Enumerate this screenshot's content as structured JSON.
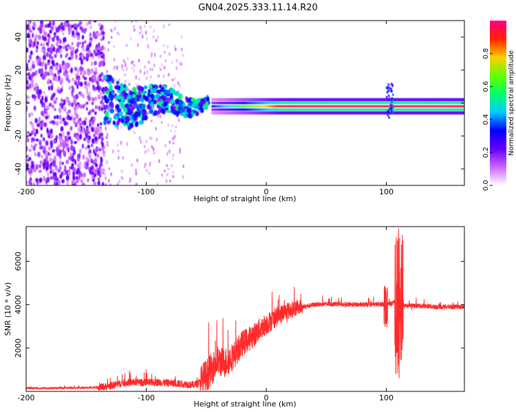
{
  "figure_title": "GN04.2025.333.11.14.R20",
  "chart_data": [
    {
      "type": "heatmap",
      "title": "GN04.2025.333.11.14.R20",
      "xlabel": "Height of straight line (km)",
      "ylabel": "Frequency (Hz)",
      "xlim": [
        -200,
        165
      ],
      "ylim": [
        -50,
        50
      ],
      "x_ticks": [
        -200,
        -100,
        0,
        100
      ],
      "x_tick_labels": [
        "-200",
        "-100",
        "0",
        "100"
      ],
      "y_ticks": [
        -40,
        -20,
        0,
        20,
        40
      ],
      "y_tick_labels": [
        "-40",
        "-20",
        "0",
        "20",
        "40"
      ],
      "colorbar": {
        "label": "Normalized spectral amplitude",
        "range": [
          0,
          1
        ],
        "ticks": [
          0.0,
          0.2,
          0.4,
          0.6,
          0.8
        ],
        "tick_labels": [
          "0.0",
          "0.2",
          "0.4",
          "0.6",
          "0.8"
        ],
        "colors": [
          "#ffffff",
          "#cc66ff",
          "#6600ff",
          "#0000ff",
          "#00ccff",
          "#00ff66",
          "#66ff00",
          "#ffcc00",
          "#ff2200",
          "#ff0080"
        ]
      },
      "regions": [
        {
          "name": "scattered noise",
          "x_range": [
            -200,
            -135
          ],
          "freq_range": [
            -50,
            50
          ],
          "amplitude": 0.2
        },
        {
          "name": "sparse noise",
          "x_range": [
            -135,
            -68
          ],
          "freq_range": [
            -50,
            50
          ],
          "amplitude": 0.1
        },
        {
          "name": "wandering band",
          "x_range": [
            -135,
            -48
          ],
          "center_freq": 0,
          "amplitude": 0.35
        },
        {
          "name": "stable tone",
          "x_range": [
            -45,
            165
          ],
          "center_freq": -2,
          "amplitude": 0.95
        },
        {
          "name": "burst",
          "x_range": [
            100,
            106
          ],
          "freq_range": [
            -10,
            12
          ],
          "amplitude": 0.3
        }
      ]
    },
    {
      "type": "line",
      "xlabel": "Height of straight line (km)",
      "ylabel": "SNR (10 * v/v)",
      "xlim": [
        -200,
        165
      ],
      "ylim": [
        0,
        7600
      ],
      "x_ticks": [
        -200,
        -100,
        0,
        100
      ],
      "x_tick_labels": [
        "-200",
        "-100",
        "0",
        "100"
      ],
      "y_ticks": [
        2000,
        4000,
        6000
      ],
      "y_tick_labels": [
        "2000",
        "4000",
        "6000"
      ],
      "series": [
        {
          "name": "SNR",
          "color": "#ff2a2a",
          "x": [
            -200,
            -180,
            -160,
            -140,
            -130,
            -120,
            -110,
            -100,
            -90,
            -80,
            -70,
            -60,
            -55,
            -50,
            -45,
            -40,
            -35,
            -30,
            -25,
            -20,
            -15,
            -10,
            -5,
            0,
            5,
            10,
            15,
            20,
            25,
            30,
            35,
            40,
            50,
            60,
            70,
            80,
            90,
            95,
            100,
            105,
            108,
            110,
            112,
            115,
            120,
            130,
            140,
            150,
            160,
            165
          ],
          "y": [
            150,
            150,
            160,
            180,
            250,
            380,
            430,
            400,
            420,
            380,
            350,
            300,
            450,
            700,
            1100,
            1400,
            1300,
            1500,
            1800,
            2200,
            2400,
            2600,
            2900,
            3100,
            3300,
            3500,
            3650,
            3750,
            3850,
            3900,
            3950,
            4000,
            4030,
            4030,
            4000,
            4000,
            4010,
            4020,
            4040,
            4050,
            4100,
            4100,
            4050,
            3950,
            3950,
            3950,
            3900,
            3900,
            3900,
            3900
          ],
          "annotations": [
            {
              "x": 100,
              "y": 5200,
              "note": "spike"
            },
            {
              "x": 110,
              "y": 7600,
              "note": "max spike"
            },
            {
              "x": 111,
              "y": 100,
              "note": "min dip"
            }
          ]
        }
      ]
    }
  ]
}
